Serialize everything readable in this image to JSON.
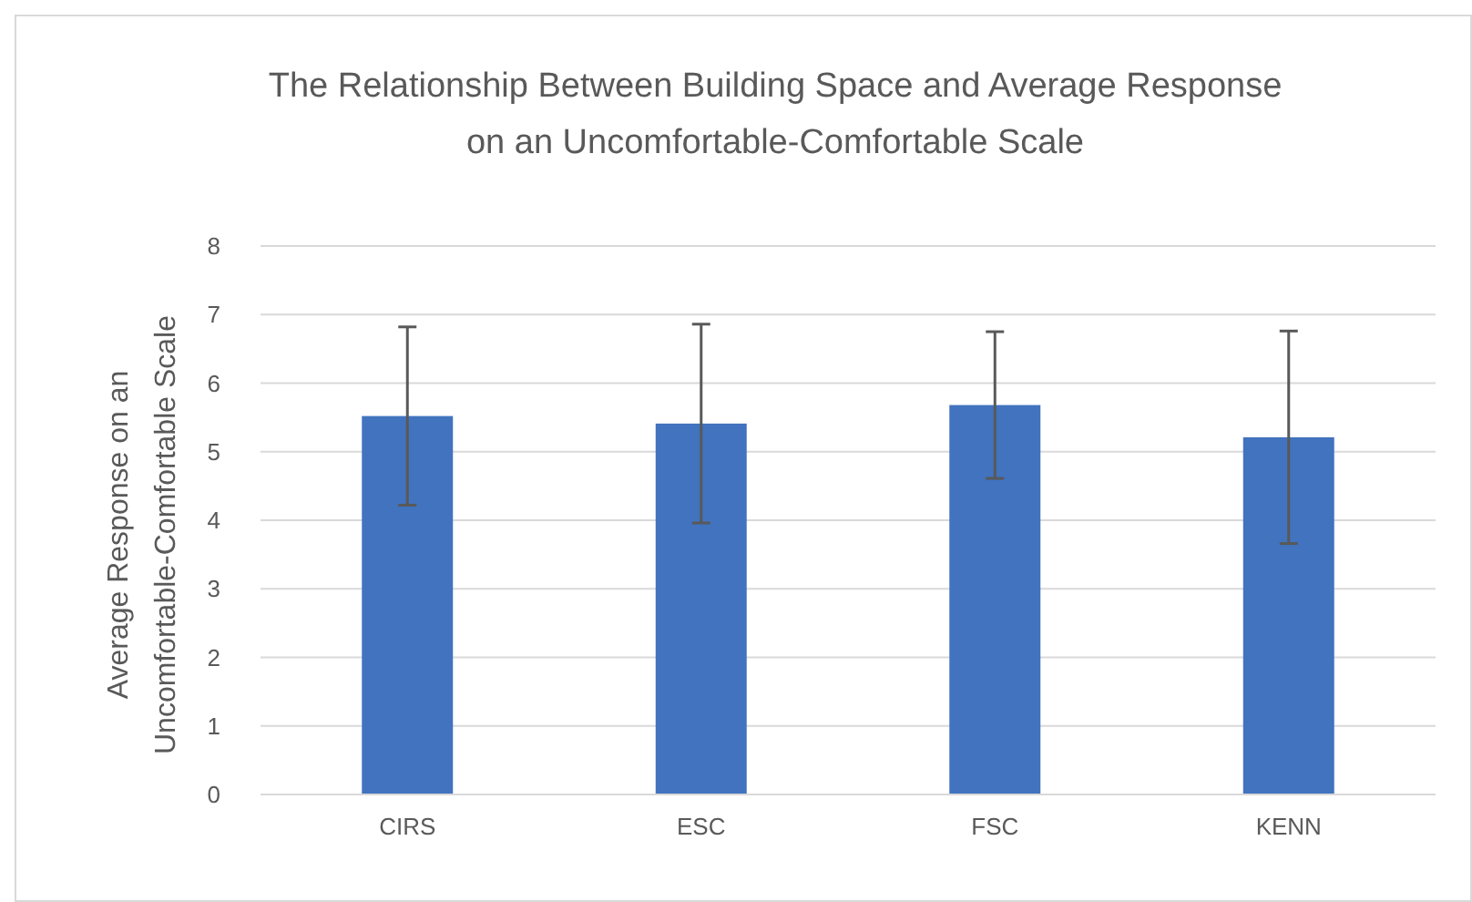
{
  "chart_data": {
    "type": "bar",
    "title": "The Relationship Between Building Space and Average Response on an Uncomfortable-Comfortable Scale",
    "ylabel": "Average Response on an Uncomfortable-Comfortable Scale",
    "categories": [
      "CIRS",
      "ESC",
      "FSC",
      "KENN"
    ],
    "values": [
      5.52,
      5.41,
      5.68,
      5.21
    ],
    "errors": [
      1.3,
      1.45,
      1.07,
      1.55
    ],
    "color": "#4173bf",
    "ylim": [
      0,
      8
    ],
    "yticks": [
      0,
      1,
      2,
      3,
      4,
      5,
      6,
      7,
      8
    ],
    "grid": "y"
  }
}
